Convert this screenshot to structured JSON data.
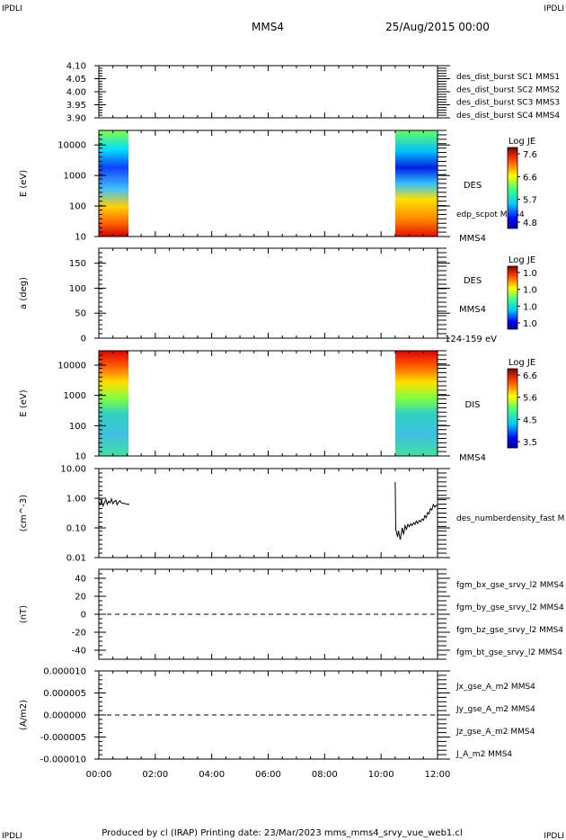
{
  "header": {
    "corner_tl": "IPDLI",
    "corner_tr": "IPDLI",
    "corner_bl": "IPDLI",
    "corner_br": "IPDLI",
    "spacecraft": "MMS4",
    "datetime": "25/Aug/2015 00:00"
  },
  "footer": {
    "text": "Produced by cl (IRAP)   Printing date: 23/Mar/2023   mms_mms4_srvy_vue_web1.cl"
  },
  "colors": {
    "mms1": "#1010c8",
    "mms2": "#d020d0",
    "mms3": "#d01010",
    "mms4": "#10b010",
    "bt": "#000000"
  },
  "chart_data": [
    {
      "type": "line",
      "ylim": [
        3.9,
        4.1
      ],
      "yticks": [
        "4.10",
        "4.05",
        "4.00",
        "3.95",
        "3.90"
      ],
      "legend": [
        {
          "text": "des_dist_burst SC1 MMS1",
          "color": "#1010c8"
        },
        {
          "text": "des_dist_burst SC2 MMS2",
          "color": "#d020d0"
        },
        {
          "text": "des_dist_burst SC3 MMS3",
          "color": "#d01010"
        },
        {
          "text": "des_dist_burst SC4 MMS4",
          "color": "#10b010"
        }
      ]
    },
    {
      "type": "heatmap",
      "ylabel": "E (eV)",
      "yscale": "log",
      "ylim": [
        10,
        30000
      ],
      "yticks": [
        "10000",
        "1000",
        "100",
        "10"
      ],
      "data_intervals_hours": [
        [
          0.0,
          1.05
        ],
        [
          10.5,
          12.0
        ]
      ],
      "right_labels": [
        "DES",
        "edp_scpot MMS4",
        "MMS4"
      ],
      "colorbar": {
        "title": "Log JE",
        "ticks": [
          "7.6",
          "6.6",
          "5.7",
          "4.8"
        ]
      }
    },
    {
      "type": "heatmap",
      "ylabel": "a (deg)",
      "ylim": [
        0,
        180
      ],
      "yticks": [
        "150",
        "100",
        "50",
        "0"
      ],
      "right_labels": [
        "DES",
        "MMS4",
        "124-159 eV"
      ],
      "colorbar": {
        "title": "Log JE",
        "ticks": [
          "1.0",
          "1.0",
          "1.0",
          "1.0"
        ]
      }
    },
    {
      "type": "heatmap",
      "ylabel": "E (eV)",
      "yscale": "log",
      "ylim": [
        10,
        30000
      ],
      "yticks": [
        "10000",
        "1000",
        "100",
        "10"
      ],
      "data_intervals_hours": [
        [
          0.0,
          1.05
        ],
        [
          10.5,
          12.0
        ]
      ],
      "right_labels": [
        "DIS",
        "MMS4"
      ],
      "colorbar": {
        "title": "Log JE",
        "ticks": [
          "6.6",
          "5.6",
          "4.5",
          "3.5"
        ]
      }
    },
    {
      "type": "line",
      "ylabel": "(cm^-3)",
      "yscale": "log",
      "ylim": [
        0.01,
        10.0
      ],
      "yticks": [
        "10.00",
        "1.00",
        "0.10",
        "0.01"
      ],
      "legend": [
        {
          "text": "des_numberdensity_fast M",
          "color": "#000000"
        }
      ],
      "series": [
        {
          "name": "des_numberdensity_fast",
          "x": [
            0.0,
            0.05,
            0.1,
            0.15,
            0.2,
            0.25,
            0.3,
            0.35,
            0.4,
            0.45,
            0.5,
            0.55,
            0.6,
            0.65,
            0.7,
            0.75,
            0.8,
            1.05,
            1.07
          ],
          "y": [
            0.78,
            0.6,
            0.85,
            0.55,
            0.72,
            0.9,
            0.62,
            0.8,
            0.7,
            0.95,
            0.65,
            0.78,
            0.85,
            0.6,
            0.75,
            0.82,
            0.7,
            0.62,
            0.66
          ]
        },
        {
          "name": "des_numberdensity_fast",
          "x": [
            10.5,
            10.52,
            10.55,
            10.58,
            10.62,
            10.68,
            10.75,
            10.8,
            10.85,
            10.9,
            10.95,
            11.0,
            11.05,
            11.1,
            11.15,
            11.2,
            11.25,
            11.3,
            11.35,
            11.4,
            11.45,
            11.5,
            11.55,
            11.6,
            11.65,
            11.7,
            11.75,
            11.8,
            11.85,
            11.9,
            11.95,
            12.0
          ],
          "y": [
            3.5,
            0.09,
            0.07,
            0.05,
            0.08,
            0.04,
            0.1,
            0.06,
            0.12,
            0.09,
            0.13,
            0.11,
            0.14,
            0.12,
            0.15,
            0.13,
            0.17,
            0.14,
            0.18,
            0.16,
            0.2,
            0.18,
            0.26,
            0.22,
            0.33,
            0.3,
            0.45,
            0.4,
            0.62,
            0.5,
            0.58,
            0.55
          ]
        }
      ]
    },
    {
      "type": "line",
      "ylabel": "(nT)",
      "ylim": [
        -50,
        50
      ],
      "yticks": [
        "40",
        "20",
        "0",
        "-20",
        "-40"
      ],
      "zero_line": true,
      "legend": [
        {
          "text": "fgm_bx_gse_srvy_l2 MMS4",
          "color": "#d01010"
        },
        {
          "text": "fgm_by_gse_srvy_l2 MMS4",
          "color": "#10b010"
        },
        {
          "text": "fgm_bz_gse_srvy_l2 MMS4",
          "color": "#1010c8"
        },
        {
          "text": "fgm_bt_gse_srvy_l2 MMS4",
          "color": "#000000"
        }
      ]
    },
    {
      "type": "line",
      "ylabel": "(A/m2)",
      "ylim": [
        -1e-05,
        1e-05
      ],
      "yticks": [
        "0.000010",
        "0.000005",
        "0.000000",
        "-0.000005",
        "-0.000010"
      ],
      "zero_line": true,
      "xlabels": [
        "00:00",
        "02:00",
        "04:00",
        "06:00",
        "08:00",
        "10:00",
        "12:00"
      ],
      "xlim_hours": [
        0,
        12
      ],
      "legend": [
        {
          "text": "Jx_gse_A_m2 MMS4",
          "color": "#d01010"
        },
        {
          "text": "Jy_gse_A_m2 MMS4",
          "color": "#10b010"
        },
        {
          "text": "Jz_gse_A_m2 MMS4",
          "color": "#1010c8"
        },
        {
          "text": "J_A_m2 MMS4",
          "color": "#000000"
        }
      ]
    }
  ]
}
